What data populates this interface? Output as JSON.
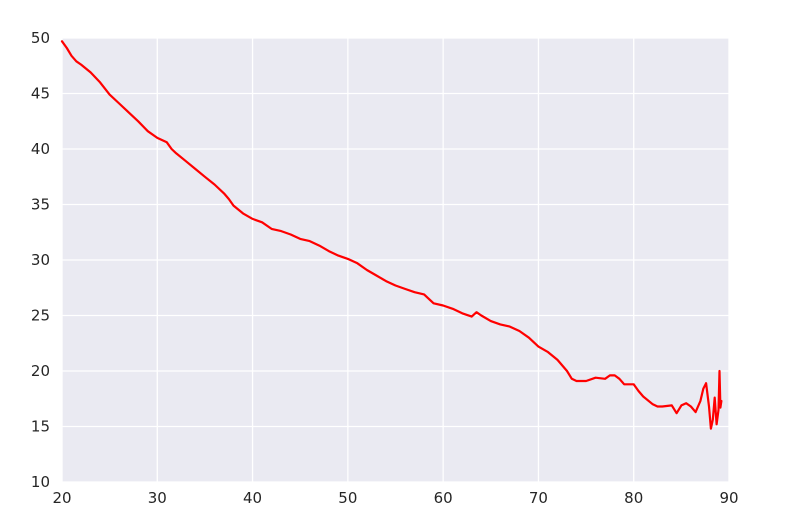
{
  "chart_data": {
    "type": "line",
    "title": "",
    "xlabel": "",
    "ylabel": "",
    "xlim": [
      20,
      90
    ],
    "ylim": [
      10,
      50
    ],
    "xticks": [
      20,
      30,
      40,
      50,
      60,
      70,
      80,
      90
    ],
    "yticks": [
      10,
      15,
      20,
      25,
      30,
      35,
      40,
      45,
      50
    ],
    "grid": true,
    "legend": "none",
    "background_color": "#eaeaf2",
    "grid_color": "#ffffff",
    "series": [
      {
        "color": "#ff0000",
        "x": [
          20,
          20.5,
          21,
          21.5,
          22,
          23,
          24,
          25,
          26,
          27,
          28,
          29,
          30,
          31,
          31.5,
          32,
          33,
          34,
          35,
          36,
          37,
          37.5,
          38,
          39,
          40,
          41,
          42,
          43,
          44,
          45,
          46,
          47,
          48,
          49,
          50,
          51,
          52,
          53,
          54,
          55,
          56,
          57,
          58,
          58.5,
          59,
          60,
          61,
          62,
          63,
          63.5,
          64,
          65,
          66,
          67,
          68,
          69,
          70,
          71,
          72,
          73,
          73.5,
          74,
          75,
          76,
          77,
          77.5,
          78,
          78.5,
          79,
          80,
          80.5,
          81,
          82,
          82.5,
          83,
          84,
          84.5,
          85,
          85.5,
          86,
          86.5,
          87,
          87.3,
          87.6,
          87.9,
          88.1,
          88.3,
          88.5,
          88.7,
          88.9,
          89,
          89.1,
          89.2
        ],
        "y": [
          49.7,
          49.1,
          48.4,
          47.9,
          47.6,
          46.9,
          46.0,
          44.9,
          44.1,
          43.3,
          42.5,
          41.6,
          41.0,
          40.6,
          40.0,
          39.6,
          38.9,
          38.2,
          37.5,
          36.8,
          36.0,
          35.5,
          34.9,
          34.2,
          33.7,
          33.4,
          32.8,
          32.6,
          32.3,
          31.9,
          31.7,
          31.3,
          30.8,
          30.4,
          30.1,
          29.7,
          29.1,
          28.6,
          28.1,
          27.7,
          27.4,
          27.1,
          26.9,
          26.5,
          26.1,
          25.9,
          25.6,
          25.2,
          24.9,
          25.3,
          25.0,
          24.5,
          24.2,
          24.0,
          23.6,
          23.0,
          22.2,
          21.7,
          21.0,
          20.0,
          19.3,
          19.1,
          19.1,
          19.4,
          19.3,
          19.6,
          19.6,
          19.3,
          18.8,
          18.8,
          18.2,
          17.7,
          17.0,
          16.8,
          16.8,
          16.9,
          16.2,
          16.9,
          17.1,
          16.8,
          16.3,
          17.3,
          18.4,
          18.9,
          16.8,
          14.8,
          15.6,
          17.6,
          15.2,
          16.5,
          20.0,
          16.7,
          17.3
        ]
      }
    ]
  }
}
